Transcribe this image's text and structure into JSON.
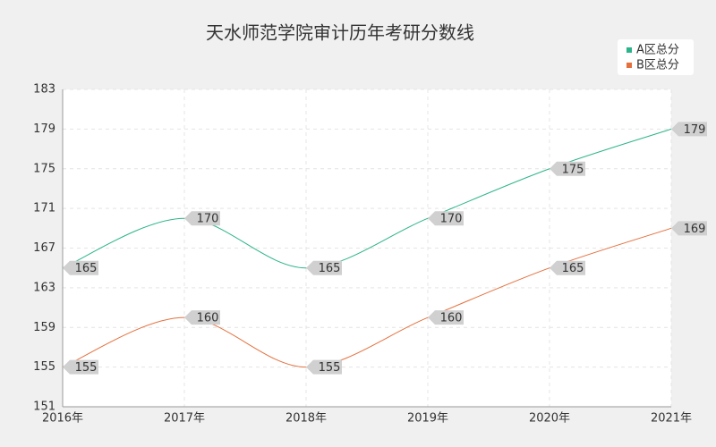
{
  "chart_data": {
    "type": "line",
    "title": "天水师范学院审计历年考研分数线",
    "categories": [
      "2016年",
      "2017年",
      "2018年",
      "2019年",
      "2020年",
      "2021年"
    ],
    "series": [
      {
        "name": "A区总分",
        "color": "#2bb48a",
        "values": [
          165,
          170,
          165,
          170,
          175,
          179
        ]
      },
      {
        "name": "B区总分",
        "color": "#e4703e",
        "values": [
          155,
          160,
          155,
          160,
          165,
          169
        ]
      }
    ],
    "ylim": [
      151,
      183
    ],
    "yticks": [
      151,
      155,
      159,
      163,
      167,
      171,
      175,
      179,
      183
    ],
    "grid": true
  }
}
